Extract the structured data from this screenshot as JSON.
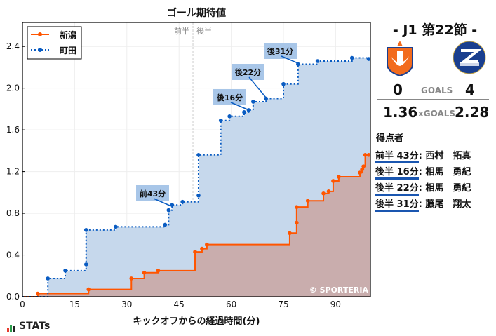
{
  "chart_data": {
    "type": "line",
    "title": "ゴール期待値",
    "xlabel": "キックオフからの経過時間(分)",
    "ylabel": "",
    "xlim": [
      0,
      100
    ],
    "ylim": [
      0,
      2.63
    ],
    "xticks": [
      0,
      15,
      30,
      45,
      60,
      75,
      90
    ],
    "yticks": [
      0.0,
      0.4,
      0.8,
      1.2,
      1.6,
      2.0,
      2.4
    ],
    "grid": true,
    "legend_position": "top-left",
    "step": true,
    "half_labels": [
      "前半",
      "後半"
    ],
    "half_time": 49,
    "series": [
      {
        "name": "新潟",
        "color": "#ff5500",
        "style": "solid",
        "fill": "#c9a9a6",
        "x": [
          0,
          4.4,
          19,
          31.3,
          35,
          39,
          49.6,
          51.6,
          53,
          76.8,
          78.8,
          78.8,
          82,
          86.5,
          88,
          89.3,
          90.9,
          97,
          97.6,
          98,
          98.5,
          99.5
        ],
        "y": [
          0,
          0.03,
          0.07,
          0.175,
          0.23,
          0.25,
          0.43,
          0.46,
          0.5,
          0.61,
          0.71,
          0.86,
          0.92,
          0.99,
          1.01,
          1.11,
          1.15,
          1.19,
          1.22,
          1.25,
          1.36,
          1.36
        ]
      },
      {
        "name": "町田",
        "color": "#0a5cc2",
        "style": "dotted",
        "fill": "#c6d8ec",
        "x": [
          0,
          7.3,
          12.3,
          18.3,
          18.3,
          26.8,
          41,
          42,
          43,
          46,
          50.6,
          50.6,
          57,
          59.5,
          63.7,
          65,
          66.3,
          70,
          75,
          79.2,
          84.8,
          94.7,
          99.5
        ],
        "y": [
          0,
          0.175,
          0.25,
          0.31,
          0.64,
          0.67,
          0.69,
          0.83,
          0.88,
          0.91,
          0.97,
          1.36,
          1.69,
          1.73,
          1.77,
          1.79,
          1.87,
          1.9,
          2.04,
          2.23,
          2.26,
          2.29,
          2.28
        ]
      }
    ],
    "annotations": [
      "前43分",
      "後16分",
      "後22分",
      "後31分"
    ],
    "watermark": "© SPORTERIA"
  },
  "match": {
    "title": "-  J1 第22節  -",
    "home_goals": "0",
    "away_goals": "4",
    "goals_label": "GOALS",
    "home_xg": "1.36",
    "away_xg": "2.28",
    "xg_label": "xGOALS"
  },
  "scorers": {
    "heading": "得点者",
    "items": [
      {
        "time": "前半 43分",
        "name": ": 西村　拓真"
      },
      {
        "time": "後半 16分",
        "name": ": 相馬　勇紀"
      },
      {
        "time": "後半 22分",
        "name": ": 相馬　勇紀"
      },
      {
        "time": "後半 31分",
        "name": ": 藤尾　翔太"
      }
    ]
  },
  "footer": {
    "brand": "STATs"
  }
}
